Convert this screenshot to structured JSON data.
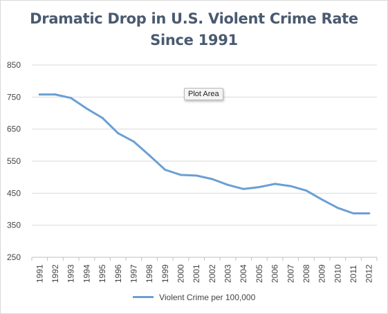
{
  "chart_data": {
    "type": "line",
    "title_line1": "Dramatic Drop in U.S. Violent Crime Rate",
    "title_line2": "Since 1991",
    "xlabel": "",
    "ylabel": "",
    "ylim": [
      250,
      850
    ],
    "yticks": [
      250,
      350,
      450,
      550,
      650,
      750,
      850
    ],
    "grid": true,
    "legend_position": "bottom",
    "categories": [
      "1991",
      "1992",
      "1993",
      "1994",
      "1995",
      "1996",
      "1997",
      "1998",
      "1999",
      "2000",
      "2001",
      "2002",
      "2003",
      "2004",
      "2005",
      "2006",
      "2007",
      "2008",
      "2009",
      "2010",
      "2011",
      "2012"
    ],
    "series": [
      {
        "name": "Violent Crime per 100,000",
        "color": "#6a9fd4",
        "values": [
          758,
          758,
          747,
          714,
          685,
          637,
          611,
          568,
          523,
          507,
          505,
          494,
          476,
          463,
          469,
          479,
          472,
          458,
          430,
          404,
          387,
          387
        ]
      }
    ]
  },
  "tooltip": {
    "text": "Plot Area"
  }
}
